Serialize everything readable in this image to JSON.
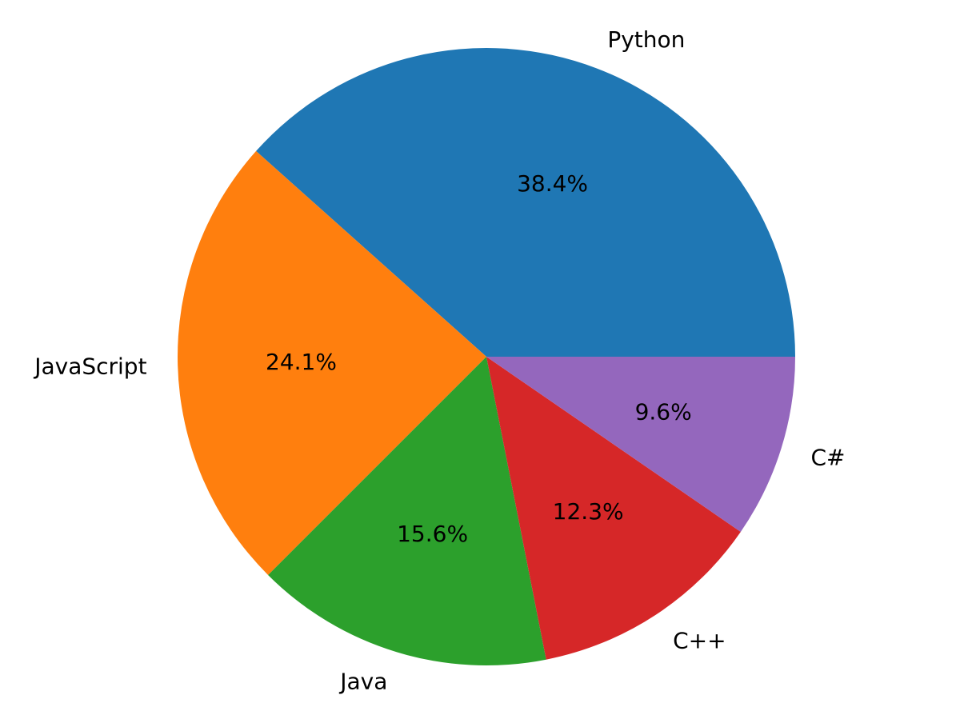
{
  "chart_data": {
    "type": "pie",
    "categories": [
      "Python",
      "JavaScript",
      "Java",
      "C++",
      "C#"
    ],
    "values": [
      38.4,
      24.1,
      15.6,
      12.3,
      9.6
    ],
    "labels": [
      "38.4%",
      "24.1%",
      "15.6%",
      "12.3%",
      "9.6%"
    ],
    "colors": [
      "#1f77b4",
      "#ff7f0e",
      "#2ca02c",
      "#d62728",
      "#9467bd"
    ],
    "start_angle_deg": 0,
    "direction": "counterclockwise",
    "legend": "none"
  }
}
